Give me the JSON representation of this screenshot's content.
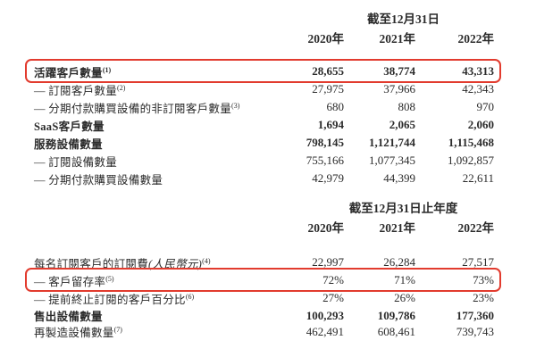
{
  "page": {
    "background": "#ffffff",
    "text_color": "#2b2b2b",
    "highlight_color": "#e23b2e"
  },
  "table": {
    "sections": [
      {
        "period_header": "截至12月31日",
        "years": [
          "2020年",
          "2021年",
          "2022年"
        ],
        "rows": [
          {
            "label": "活躍客戶數量",
            "sup": "(1)",
            "bold": true,
            "highlight": true,
            "values": [
              "28,655",
              "38,774",
              "43,313"
            ]
          },
          {
            "label": "— 訂閱客戶數量",
            "sup": "(2)",
            "bold": false,
            "highlight": false,
            "values": [
              "27,975",
              "37,966",
              "42,343"
            ]
          },
          {
            "label": "— 分期付款購買設備的非訂閱客戶數量",
            "sup": "(3)",
            "bold": false,
            "highlight": false,
            "values": [
              "680",
              "808",
              "970"
            ]
          },
          {
            "label": "SaaS客戶數量",
            "bold": true,
            "highlight": false,
            "values": [
              "1,694",
              "2,065",
              "2,060"
            ]
          },
          {
            "label": "服務設備數量",
            "bold": true,
            "highlight": false,
            "values": [
              "798,145",
              "1,121,744",
              "1,115,468"
            ]
          },
          {
            "label": "— 訂閱設備數量",
            "bold": false,
            "highlight": false,
            "values": [
              "755,166",
              "1,077,345",
              "1,092,857"
            ]
          },
          {
            "label": "— 分期付款購買設備數量",
            "bold": false,
            "highlight": false,
            "values": [
              "42,979",
              "44,399",
              "22,611"
            ]
          }
        ]
      },
      {
        "period_header": "截至12月31日止年度",
        "years": [
          "2020年",
          "2021年",
          "2022年"
        ],
        "rows": [
          {
            "label": "每名訂閱客戶的訂閱費",
            "italic": "(人民幣元)",
            "sup": "(4)",
            "bold": false,
            "highlight": false,
            "values": [
              "22,997",
              "26,284",
              "27,517"
            ]
          },
          {
            "label": "— 客戶留存率",
            "sup": "(5)",
            "bold": false,
            "highlight": true,
            "values": [
              "72%",
              "71%",
              "73%"
            ]
          },
          {
            "label": "— 提前終止訂閱的客戶百分比",
            "sup": "(6)",
            "bold": false,
            "highlight": false,
            "values": [
              "27%",
              "26%",
              "23%"
            ]
          },
          {
            "label": "售出設備數量",
            "bold": true,
            "highlight": false,
            "values": [
              "100,293",
              "109,786",
              "177,360"
            ]
          },
          {
            "label": "再製造設備數量",
            "sup": "(7)",
            "bold": false,
            "highlight": false,
            "values": [
              "462,491",
              "608,461",
              "739,743"
            ]
          }
        ]
      }
    ]
  }
}
